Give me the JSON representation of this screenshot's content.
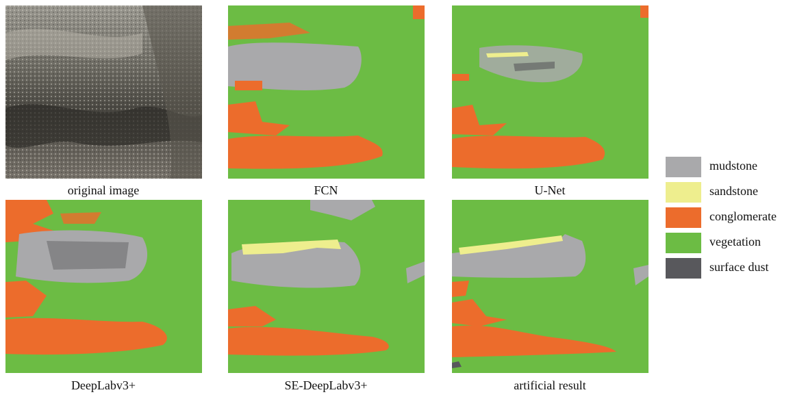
{
  "panels": [
    {
      "caption": "original image"
    },
    {
      "caption": "FCN"
    },
    {
      "caption": "U-Net"
    },
    {
      "caption": "DeepLabv3+"
    },
    {
      "caption": "SE-DeepLabv3+"
    },
    {
      "caption": "artificial result"
    }
  ],
  "legend": [
    {
      "label": "mudstone",
      "color": "#a9a9ab"
    },
    {
      "label": "sandstone",
      "color": "#eeee8e"
    },
    {
      "label": "conglomerate",
      "color": "#ec6c2c"
    },
    {
      "label": "vegetation",
      "color": "#6cbc44"
    },
    {
      "label": "surface dust",
      "color": "#58585c"
    }
  ]
}
